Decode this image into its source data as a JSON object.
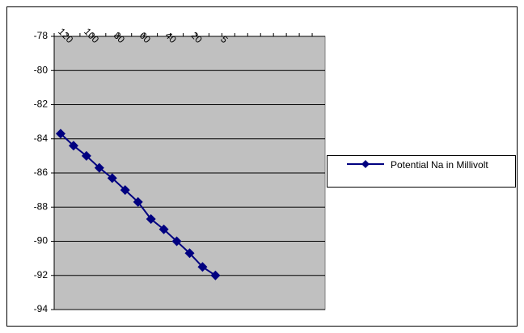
{
  "chart_data": {
    "type": "line",
    "categories": [
      "120",
      null,
      "100",
      null,
      "80",
      null,
      "60",
      null,
      "40",
      null,
      "20",
      null,
      "5",
      null,
      null,
      null,
      null,
      null,
      null,
      null,
      null
    ],
    "series": [
      {
        "name": "Potential Na in Millivolt",
        "color": "#000080",
        "values": [
          -83.7,
          -84.4,
          -85.0,
          -85.7,
          -86.3,
          -87.0,
          -87.7,
          -88.7,
          -89.3,
          -90.0,
          -90.7,
          -91.5,
          -92.0,
          null,
          null,
          null,
          null,
          null,
          null,
          null,
          null
        ]
      }
    ],
    "ylim": [
      -94,
      -78
    ],
    "yticks": [
      -94,
      -92,
      -90,
      -88,
      -86,
      -84,
      -82,
      -80,
      -78
    ],
    "grid": true,
    "legend": "right"
  }
}
